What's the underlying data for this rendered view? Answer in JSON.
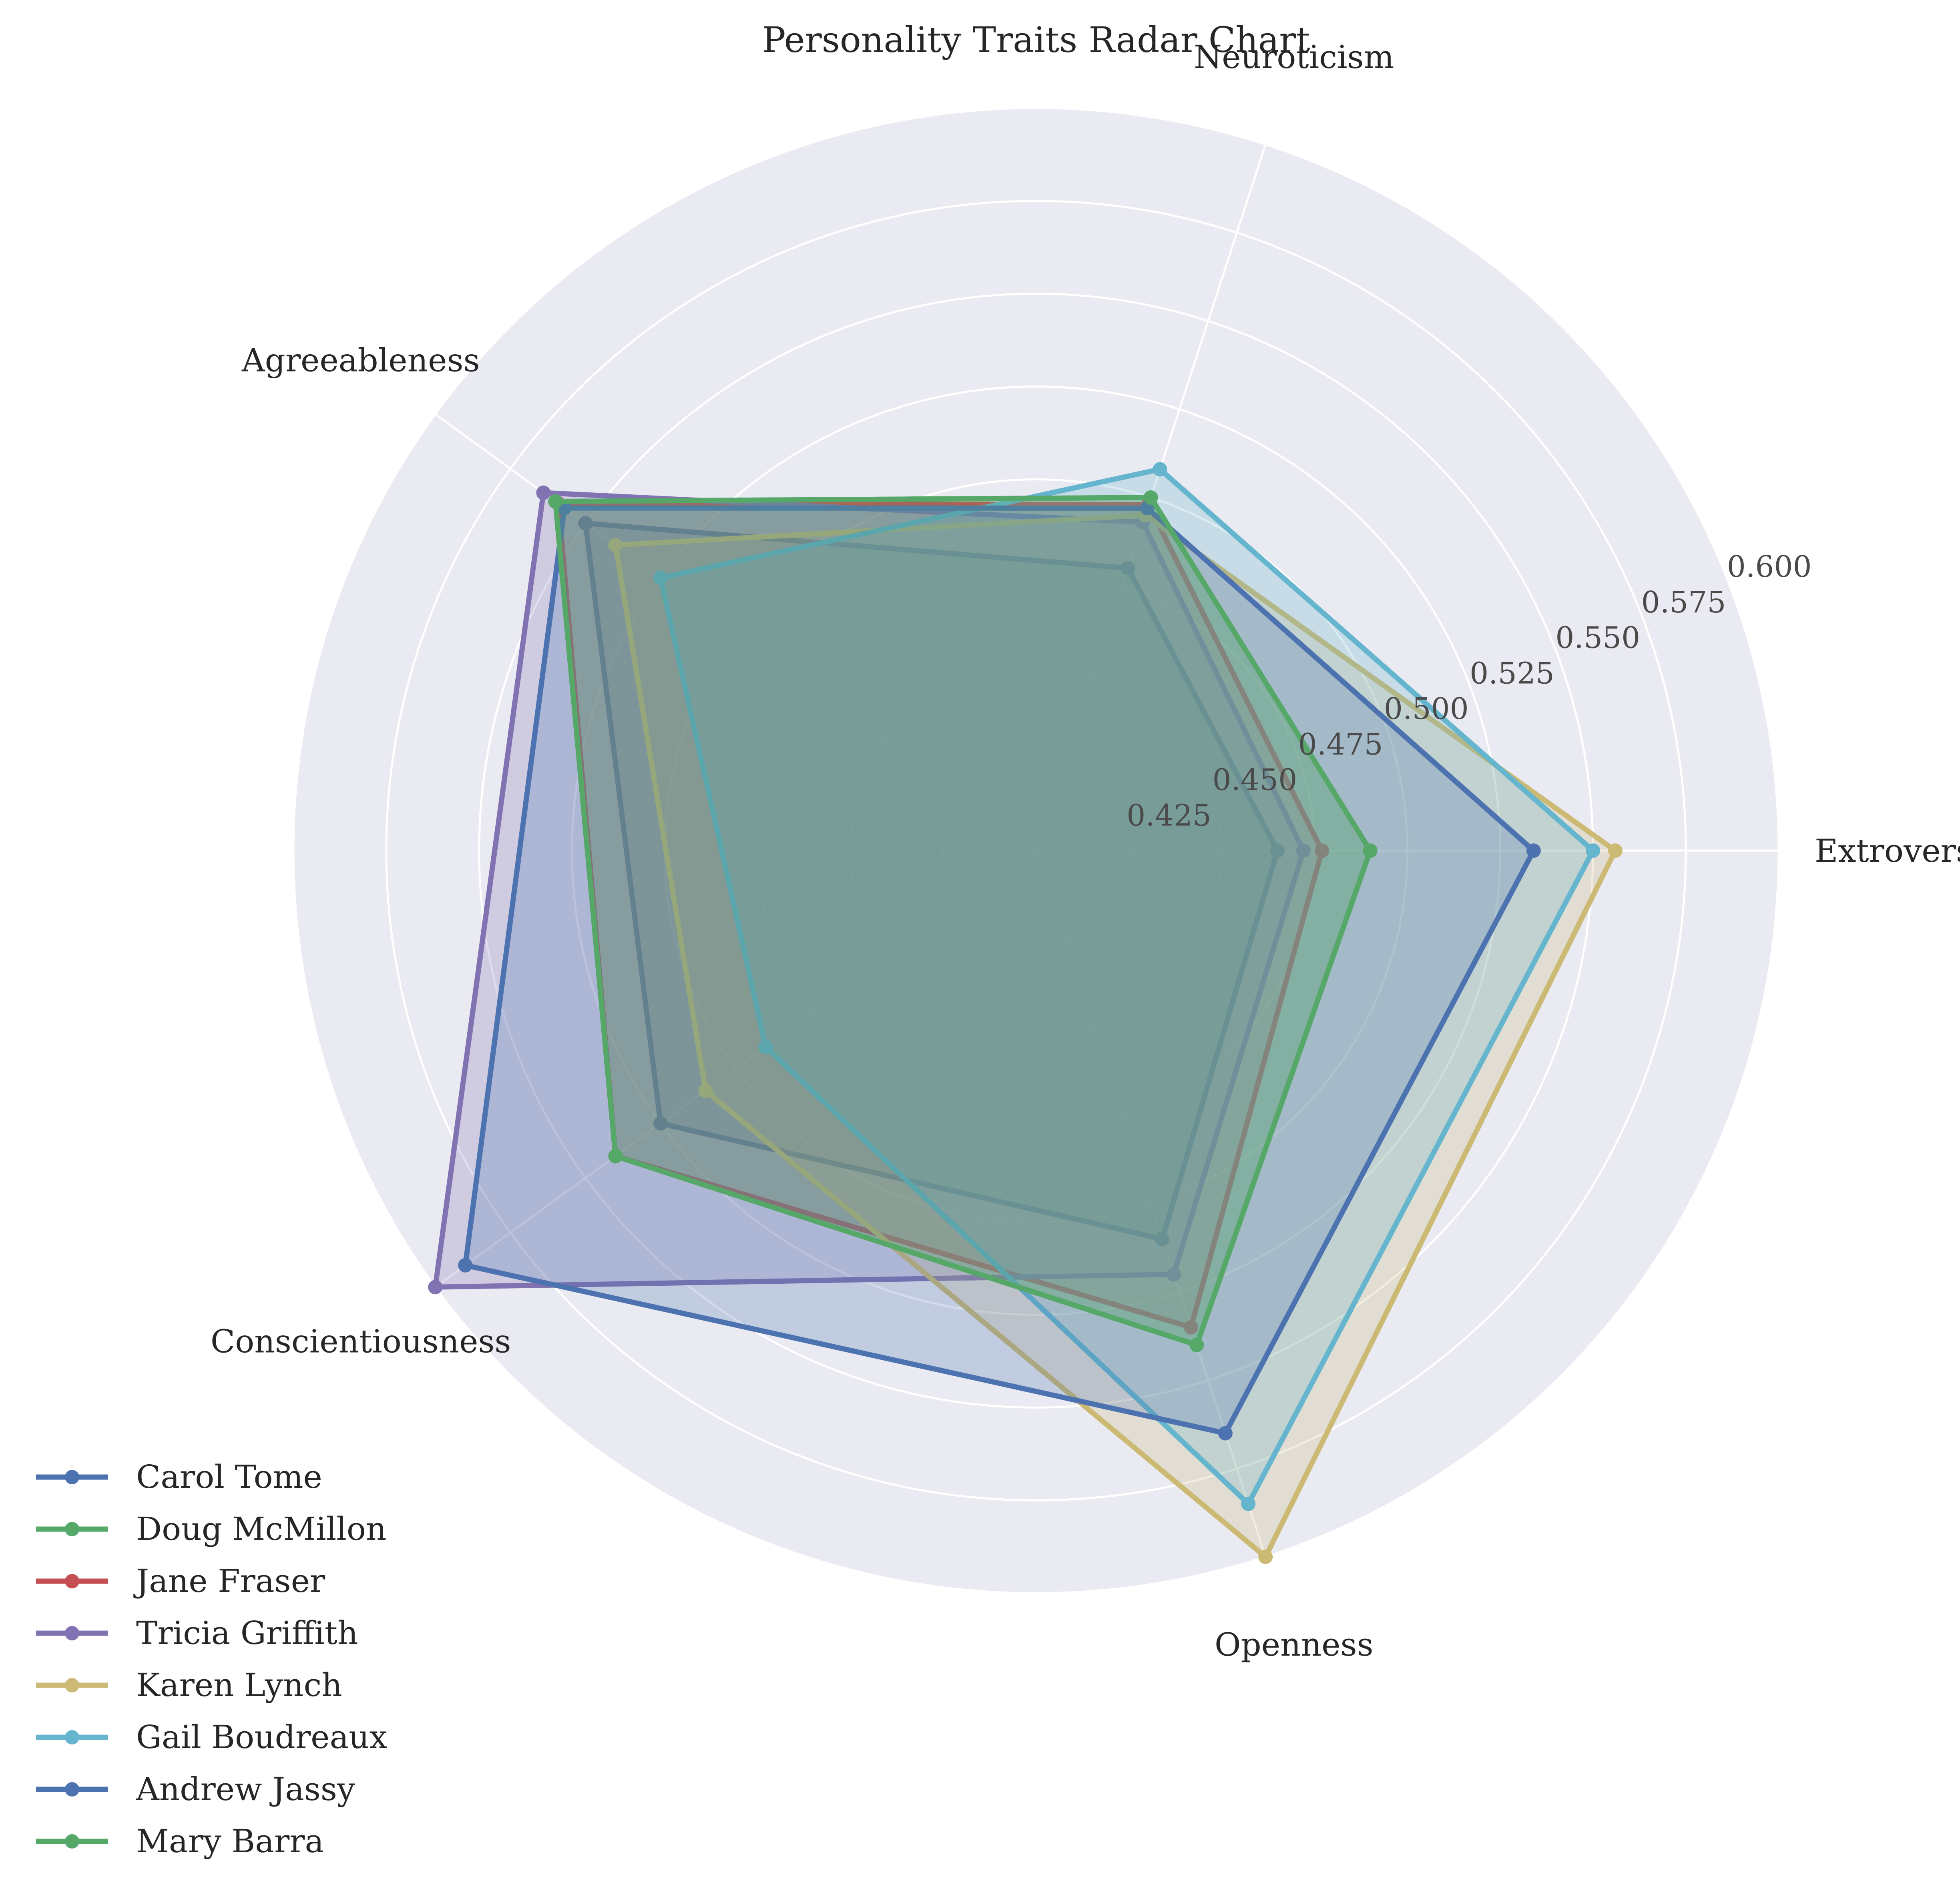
{
  "chart_data": {
    "type": "radar",
    "title": "Personality Traits Radar Chart",
    "axes": [
      "Extroversion",
      "Neuroticism",
      "Agreeableness",
      "Conscientiousness",
      "Openness"
    ],
    "rlim": [
      0.4,
      0.6
    ],
    "r_ticks": [
      "0.425",
      "0.450",
      "0.475",
      "0.500",
      "0.525",
      "0.550",
      "0.575",
      "0.600"
    ],
    "grid": true,
    "legend_position": "lower-left",
    "series": [
      {
        "name": "Carol Tome",
        "color": "#4c72b0",
        "values": [
          0.465,
          0.48,
          0.55,
          0.525,
          0.51
        ]
      },
      {
        "name": "Doug McMillon",
        "color": "#55a868",
        "values": [
          0.49,
          0.5,
          0.56,
          0.54,
          0.54
        ]
      },
      {
        "name": "Jane Fraser",
        "color": "#c44e52",
        "values": [
          0.477,
          0.498,
          0.559,
          0.54,
          0.535
        ]
      },
      {
        "name": "Tricia Griffith",
        "color": "#8172b2",
        "values": [
          0.472,
          0.493,
          0.564,
          0.6,
          0.52
        ]
      },
      {
        "name": "Karen Lynch",
        "color": "#ccb974",
        "values": [
          0.556,
          0.495,
          0.54,
          0.51,
          0.6
        ]
      },
      {
        "name": "Gail Boudreaux",
        "color": "#64b5cd",
        "values": [
          0.55,
          0.508,
          0.525,
          0.49,
          0.585
        ]
      },
      {
        "name": "Andrew Jassy",
        "color": "#4c72b0",
        "values": [
          0.534,
          0.497,
          0.557,
          0.59,
          0.565
        ]
      },
      {
        "name": "Mary Barra",
        "color": "#55a868",
        "values": [
          0.49,
          0.5,
          0.56,
          0.54,
          0.54
        ]
      }
    ]
  }
}
